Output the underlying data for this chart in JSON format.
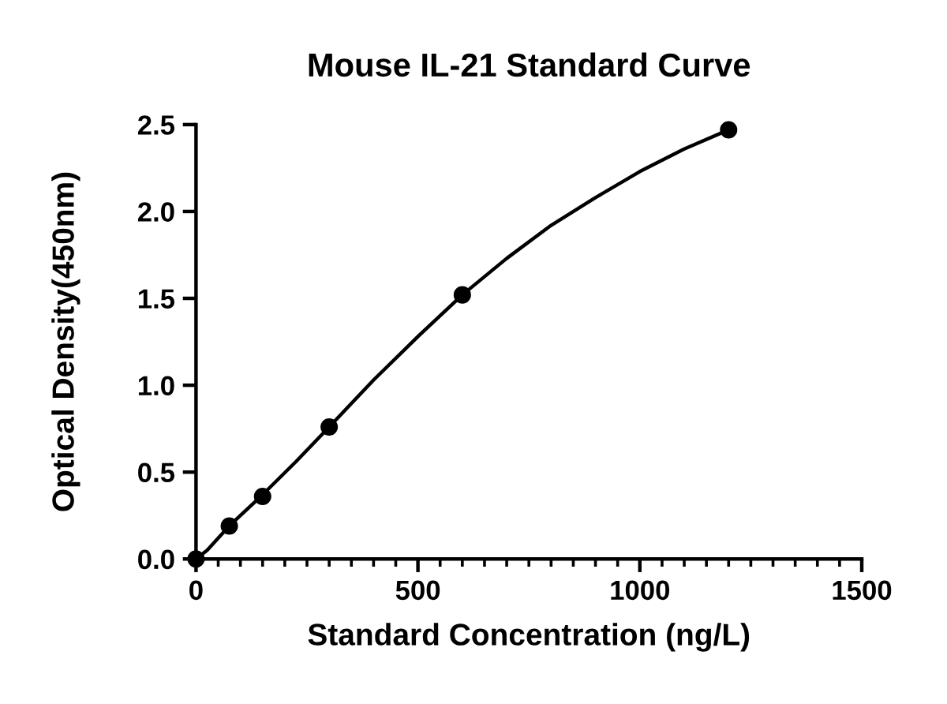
{
  "chart_data": {
    "type": "scatter",
    "title": "Mouse IL-21 Standard Curve",
    "xlabel": "Standard Concentration (ng/L)",
    "ylabel": "Optical Density(450nm)",
    "xlim": [
      0,
      1500
    ],
    "xticks": [
      0,
      {
        "value": 50,
        "label": null
      },
      {
        "value": 100,
        "label": null
      },
      {
        "value": 150,
        "label": null
      },
      {
        "value": 200,
        "label": null
      },
      {
        "value": 250,
        "label": null
      },
      {
        "value": 300,
        "label": null
      },
      {
        "value": 350,
        "label": null
      },
      {
        "value": 400,
        "label": null
      },
      {
        "value": 450,
        "label": null
      },
      500,
      {
        "value": 550,
        "label": null
      },
      {
        "value": 600,
        "label": null
      },
      {
        "value": 650,
        "label": null
      },
      {
        "value": 700,
        "label": null
      },
      {
        "value": 750,
        "label": null
      },
      {
        "value": 800,
        "label": null
      },
      {
        "value": 850,
        "label": null
      },
      {
        "value": 900,
        "label": null
      },
      {
        "value": 950,
        "label": null
      },
      1000,
      {
        "value": 1050,
        "label": null
      },
      {
        "value": 1100,
        "label": null
      },
      {
        "value": 1150,
        "label": null
      },
      {
        "value": 1200,
        "label": null
      },
      {
        "value": 1250,
        "label": null
      },
      {
        "value": 1300,
        "label": null
      },
      {
        "value": 1350,
        "label": null
      },
      {
        "value": 1400,
        "label": null
      },
      {
        "value": 1450,
        "label": null
      },
      1500
    ],
    "ylim": [
      0,
      2.5
    ],
    "yticks": [
      {
        "value": 0,
        "label": "0.0"
      },
      0.5,
      {
        "value": 1,
        "label": "1.0"
      },
      1.5,
      {
        "value": 2,
        "label": "2.0"
      },
      2.5
    ],
    "series": [
      {
        "type": "line",
        "color": "#000000",
        "marker": "none",
        "line_style": "solid",
        "x": [
          0,
          25,
          50,
          75,
          100,
          150,
          225,
          300,
          400,
          500,
          600,
          700,
          800,
          900,
          1000,
          1100,
          1200
        ],
        "values": [
          0,
          0.05,
          0.12,
          0.19,
          0.25,
          0.37,
          0.56,
          0.76,
          1.03,
          1.28,
          1.52,
          1.73,
          1.92,
          2.08,
          2.23,
          2.36,
          2.47
        ]
      },
      {
        "color": "#000000",
        "marker": "circle",
        "x": [
          0,
          75,
          150,
          300,
          600,
          1200
        ],
        "values": [
          0,
          0.19,
          0.36,
          0.76,
          1.52,
          2.47
        ]
      }
    ]
  }
}
